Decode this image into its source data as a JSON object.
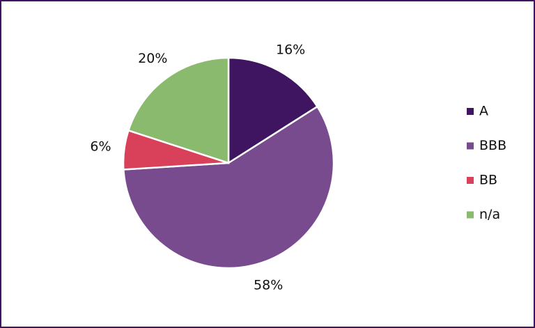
{
  "chart_data": {
    "type": "pie",
    "categories": [
      "A",
      "BBB",
      "BB",
      "n/a"
    ],
    "values": [
      16,
      58,
      6,
      20
    ],
    "value_labels": [
      "16%",
      "58%",
      "6%",
      "20%"
    ],
    "colors": [
      "#3f1460",
      "#784b8f",
      "#d9405a",
      "#8aba6e"
    ],
    "legend": "right"
  }
}
